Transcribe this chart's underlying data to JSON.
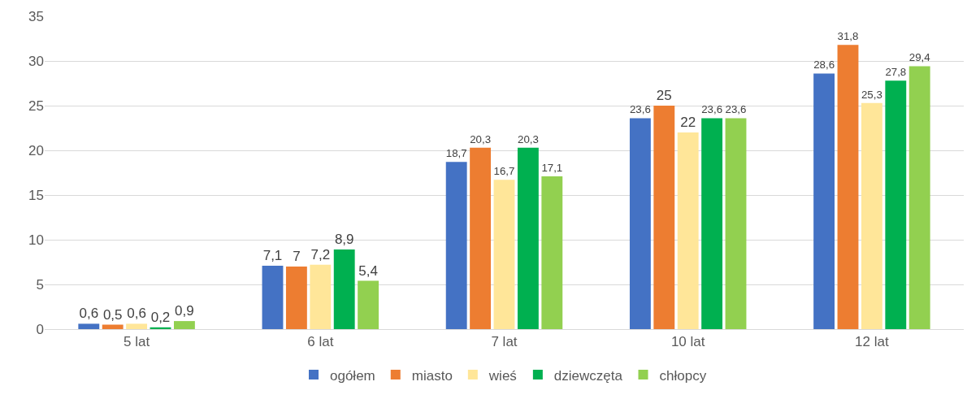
{
  "chart_data": {
    "type": "bar",
    "categories": [
      "5 lat",
      "6 lat",
      "7 lat",
      "10 lat",
      "12 lat"
    ],
    "series": [
      {
        "name": "ogółem",
        "color": "#4472c4",
        "values": [
          0.6,
          7.1,
          18.7,
          23.6,
          28.6
        ],
        "value_labels": [
          "0,6",
          "7,1",
          "18,7",
          "23,6",
          "28,6"
        ]
      },
      {
        "name": "miasto",
        "color": "#ed7d31",
        "values": [
          0.5,
          7,
          20.3,
          25,
          31.8
        ],
        "value_labels": [
          "0,5",
          "7",
          "20,3",
          "25",
          "31,8"
        ]
      },
      {
        "name": "wieś",
        "color": "#ffe699",
        "values": [
          0.6,
          7.2,
          16.7,
          22,
          25.3
        ],
        "value_labels": [
          "0,6",
          "7,2",
          "16,7",
          "22",
          "25,3"
        ]
      },
      {
        "name": "dziewczęta",
        "color": "#00b050",
        "values": [
          0.2,
          8.9,
          20.3,
          23.6,
          27.8
        ],
        "value_labels": [
          "0,2",
          "8,9",
          "20,3",
          "23,6",
          "27,8"
        ]
      },
      {
        "name": "chłopcy",
        "color": "#92d050",
        "values": [
          0.9,
          5.4,
          17.1,
          23.6,
          29.4
        ],
        "value_labels": [
          "0,9",
          "5,4",
          "17,1",
          "23,6",
          "29,4"
        ]
      }
    ],
    "ylim": [
      0,
      35
    ],
    "yticks": [
      0,
      5,
      10,
      15,
      20,
      25,
      30,
      35
    ],
    "grid": "y",
    "legend": "bottom"
  }
}
